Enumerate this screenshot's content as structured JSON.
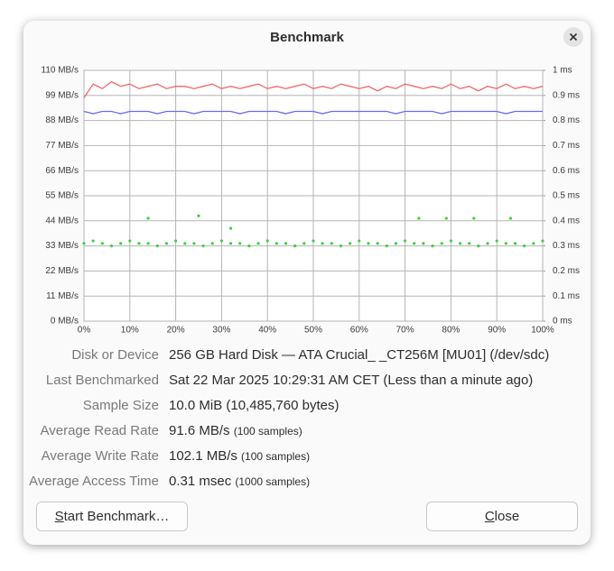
{
  "dialog": {
    "title": "Benchmark"
  },
  "chart_data": {
    "type": "line",
    "xlim": [
      0,
      100
    ],
    "xticks": [
      {
        "value": 0,
        "label": "0%"
      },
      {
        "value": 10,
        "label": "10%"
      },
      {
        "value": 20,
        "label": "20%"
      },
      {
        "value": 30,
        "label": "30%"
      },
      {
        "value": 40,
        "label": "40%"
      },
      {
        "value": 50,
        "label": "50%"
      },
      {
        "value": 60,
        "label": "60%"
      },
      {
        "value": 70,
        "label": "70%"
      },
      {
        "value": 80,
        "label": "80%"
      },
      {
        "value": 90,
        "label": "90%"
      },
      {
        "value": 100,
        "label": "100%"
      }
    ],
    "ylim": [
      0,
      110
    ],
    "yticks": [
      {
        "value": 0,
        "label": "0 MB/s"
      },
      {
        "value": 11,
        "label": "11 MB/s"
      },
      {
        "value": 22,
        "label": "22 MB/s"
      },
      {
        "value": 33,
        "label": "33 MB/s"
      },
      {
        "value": 44,
        "label": "44 MB/s"
      },
      {
        "value": 55,
        "label": "55 MB/s"
      },
      {
        "value": 66,
        "label": "66 MB/s"
      },
      {
        "value": 77,
        "label": "77 MB/s"
      },
      {
        "value": 88,
        "label": "88 MB/s"
      },
      {
        "value": 99,
        "label": "99 MB/s"
      },
      {
        "value": 110,
        "label": "110 MB/s"
      }
    ],
    "y2lim": [
      0,
      1
    ],
    "y2ticks": [
      {
        "value": 0,
        "label": "0 ms"
      },
      {
        "value": 0.1,
        "label": "0.1 ms"
      },
      {
        "value": 0.2,
        "label": "0.2 ms"
      },
      {
        "value": 0.3,
        "label": "0.3 ms"
      },
      {
        "value": 0.4,
        "label": "0.4 ms"
      },
      {
        "value": 0.5,
        "label": "0.5 ms"
      },
      {
        "value": 0.6,
        "label": "0.6 ms"
      },
      {
        "value": 0.7,
        "label": "0.7 ms"
      },
      {
        "value": 0.8,
        "label": "0.8 ms"
      },
      {
        "value": 0.9,
        "label": "0.9 ms"
      },
      {
        "value": 1,
        "label": "1 ms"
      }
    ],
    "grid": true,
    "series": [
      {
        "type": "line",
        "color": "#f06767",
        "x": [
          0,
          2,
          4,
          6,
          8,
          10,
          12,
          14,
          16,
          18,
          20,
          22,
          24,
          26,
          28,
          30,
          32,
          34,
          36,
          38,
          40,
          42,
          44,
          46,
          48,
          50,
          52,
          54,
          56,
          58,
          60,
          62,
          64,
          66,
          68,
          70,
          72,
          74,
          76,
          78,
          80,
          82,
          84,
          86,
          88,
          90,
          92,
          94,
          96,
          98,
          100
        ],
        "values": [
          98,
          104,
          102,
          105,
          103,
          104,
          102,
          103,
          104,
          102,
          103,
          103,
          102,
          103,
          104,
          102,
          103,
          102,
          103,
          104,
          102,
          103,
          102,
          103,
          104,
          102,
          103,
          102,
          104,
          103,
          102,
          103,
          101,
          103,
          102,
          104,
          103,
          102,
          103,
          102,
          104,
          102,
          103,
          101,
          103,
          102,
          104,
          102,
          103,
          102,
          103
        ]
      },
      {
        "type": "line",
        "color": "#6b6bef",
        "x": [
          0,
          2,
          4,
          6,
          8,
          10,
          12,
          14,
          16,
          18,
          20,
          22,
          24,
          26,
          28,
          30,
          32,
          34,
          36,
          38,
          40,
          42,
          44,
          46,
          48,
          50,
          52,
          54,
          56,
          58,
          60,
          62,
          64,
          66,
          68,
          70,
          72,
          74,
          76,
          78,
          80,
          82,
          84,
          86,
          88,
          90,
          92,
          94,
          96,
          98,
          100
        ],
        "values": [
          92,
          91,
          92,
          92,
          91,
          92,
          92,
          92,
          91,
          92,
          92,
          92,
          91,
          92,
          92,
          92,
          92,
          91,
          92,
          92,
          92,
          92,
          91,
          92,
          92,
          92,
          91,
          92,
          92,
          92,
          92,
          92,
          92,
          92,
          91,
          92,
          92,
          92,
          92,
          91,
          92,
          92,
          92,
          92,
          92,
          92,
          91,
          92,
          92,
          92,
          92
        ]
      },
      {
        "type": "scatter",
        "axis": "y2",
        "color": "#3cd23c",
        "x": [
          0,
          2,
          4,
          6,
          8,
          10,
          12,
          14,
          16,
          18,
          20,
          22,
          24,
          26,
          28,
          30,
          32,
          34,
          36,
          38,
          40,
          42,
          44,
          46,
          48,
          50,
          52,
          54,
          56,
          58,
          60,
          62,
          64,
          66,
          68,
          70,
          72,
          74,
          76,
          78,
          80,
          82,
          84,
          86,
          88,
          90,
          92,
          94,
          96,
          98,
          100,
          14,
          25,
          32,
          73,
          79,
          85,
          93
        ],
        "values": [
          0.31,
          0.32,
          0.31,
          0.3,
          0.31,
          0.32,
          0.31,
          0.31,
          0.3,
          0.31,
          0.32,
          0.31,
          0.31,
          0.3,
          0.31,
          0.32,
          0.31,
          0.31,
          0.3,
          0.31,
          0.32,
          0.31,
          0.31,
          0.3,
          0.31,
          0.32,
          0.31,
          0.31,
          0.3,
          0.31,
          0.32,
          0.31,
          0.31,
          0.3,
          0.31,
          0.32,
          0.31,
          0.31,
          0.3,
          0.31,
          0.32,
          0.31,
          0.31,
          0.3,
          0.31,
          0.32,
          0.31,
          0.31,
          0.3,
          0.31,
          0.32,
          0.41,
          0.42,
          0.37,
          0.41,
          0.41,
          0.41,
          0.41
        ]
      }
    ]
  },
  "rows": [
    {
      "label": "Disk or Device",
      "value": "256 GB Hard Disk — ATA Crucial_ _CT256M [MU01] (/dev/sdc)"
    },
    {
      "label": "Last Benchmarked",
      "value": "Sat 22 Mar 2025 10:29:31 AM CET (Less than a minute ago)"
    },
    {
      "label": "Sample Size",
      "value": "10.0 MiB (10,485,760 bytes)"
    },
    {
      "label": "Average Read Rate",
      "value": "91.6 MB/s",
      "note": "(100 samples)"
    },
    {
      "label": "Average Write Rate",
      "value": "102.1 MB/s",
      "note": "(100 samples)"
    },
    {
      "label": "Average Access Time",
      "value": "0.31 msec",
      "note": "(1000 samples)"
    }
  ],
  "buttons": {
    "start": "Start Benchmark…",
    "close": "Close"
  }
}
